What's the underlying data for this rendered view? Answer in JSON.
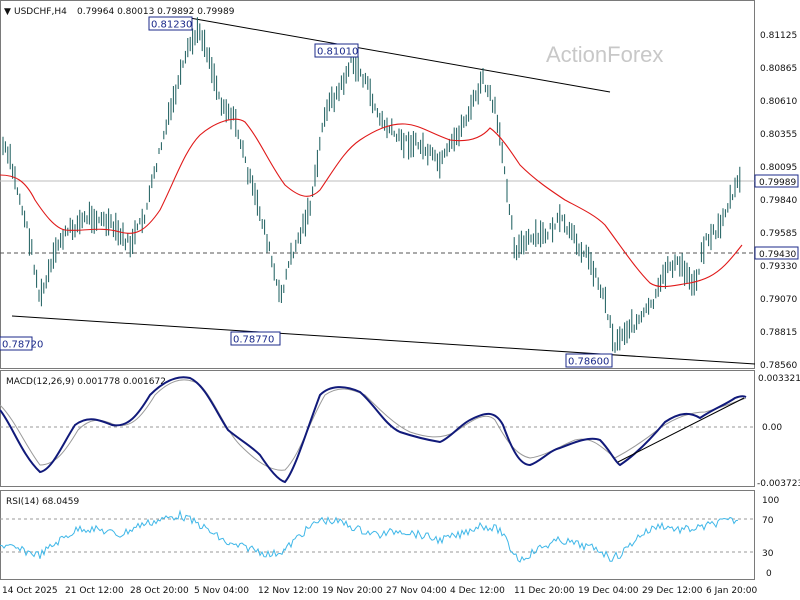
{
  "header": {
    "symbol_timeframe": "USDCHF,H4",
    "ohlc": "0.79964 0.80013 0.79892 0.79989"
  },
  "watermark": "ActionForex",
  "price_axis": {
    "ticks": [
      "0.81125",
      "0.80865",
      "0.80610",
      "0.80355",
      "0.80095",
      "0.79840",
      "0.79585",
      "0.79330",
      "0.79070",
      "0.78815",
      "0.78560"
    ],
    "current_price": "0.79989",
    "reference_level": "0.79430"
  },
  "price_annotations": {
    "high1": "0.81230",
    "high2": "0.81010",
    "low1": "0.78720",
    "low2": "0.78770",
    "low3": "0.78600"
  },
  "macd": {
    "title": "MACD(12,26,9) 0.001778 0.001672",
    "ticks": [
      "0.003321",
      "0.00",
      "-0.003723"
    ]
  },
  "rsi": {
    "title": "RSI(14) 68.0459",
    "ticks": [
      "100",
      "70",
      "30",
      "0"
    ]
  },
  "time_axis": [
    "14 Oct 2025",
    "21 Oct 12:00",
    "28 Oct 20:00",
    "5 Nov 04:00",
    "12 Nov 12:00",
    "19 Nov 20:00",
    "27 Nov 04:00",
    "4 Dec 12:00",
    "11 Dec 20:00",
    "19 Dec 04:00",
    "29 Dec 12:00",
    "6 Jan 20:00"
  ],
  "colors": {
    "bars": "#1a5c5c",
    "ma": "#e01919",
    "macd": "#111a7a",
    "signal": "#9a9a9a",
    "rsi": "#3fb7e8",
    "box_border": "#1b2a8a"
  },
  "chart_data": [
    {
      "type": "ohlc",
      "title": "USDCHF,H4",
      "ylim": [
        0.7856,
        0.8125
      ],
      "annotated_levels": [
        0.8123,
        0.8101,
        0.7872,
        0.7877,
        0.786
      ],
      "current": 0.79989,
      "horizontal_line": 0.7943,
      "series": [
        {
          "name": "MA",
          "color": "#e01919"
        }
      ]
    },
    {
      "type": "line",
      "title": "MACD(12,26,9) 0.001778 0.001672",
      "values": {
        "macd": 0.001778,
        "signal": 0.001672
      },
      "ylim": [
        -0.003723,
        0.003321
      ]
    },
    {
      "type": "line",
      "title": "RSI(14) 68.0459",
      "value": 68.0459,
      "ylim": [
        0,
        100
      ],
      "levels": [
        70,
        30
      ]
    }
  ]
}
